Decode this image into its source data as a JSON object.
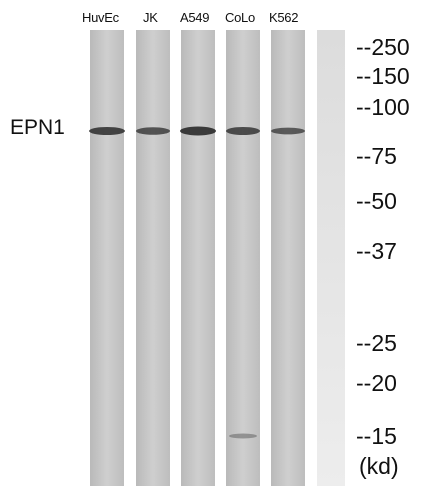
{
  "lanes": [
    {
      "label": "HuvEc",
      "band_intensity": 0.85
    },
    {
      "label": "JK",
      "band_intensity": 0.75
    },
    {
      "label": "A549",
      "band_intensity": 0.9
    },
    {
      "label": "CoLo",
      "band_intensity": 0.8
    },
    {
      "label": "K562",
      "band_intensity": 0.7
    },
    {
      "label": "",
      "band_intensity": 0
    }
  ],
  "protein": "EPN1",
  "markers": [
    "--250",
    "--150",
    "--100",
    "--75",
    "--50",
    "--37",
    "--25",
    "--20",
    "--15"
  ],
  "unit": "(kd)",
  "colors": {
    "lane": "#c9c9c9",
    "band": "#2a2a2a",
    "control_lane": "#e6e6e6"
  }
}
